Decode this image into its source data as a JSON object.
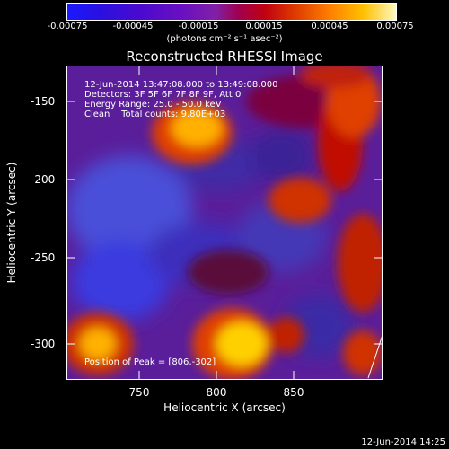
{
  "colorbar": {
    "labels": [
      "-0.00075",
      "-0.00045",
      "-0.00015",
      "0.00015",
      "0.00045",
      "0.00075"
    ],
    "units": "(photons cm⁻² s⁻¹ asec⁻²)",
    "range": [
      -0.00075,
      0.00075
    ]
  },
  "title": "Reconstructed RHESSI Image",
  "annotations": {
    "time": "12-Jun-2014 13:47:08.000 to 13:49:08.000",
    "detectors": "Detectors: 3F 5F 6F 7F 8F 9F, Att 0",
    "energy": "Energy Range: 25.0 - 50.0 keV",
    "clean": "Clean    Total counts: 9.80E+03",
    "peak": "Position of Peak = [806,-302]"
  },
  "axes": {
    "xlabel": "Heliocentric X (arcsec)",
    "ylabel": "Heliocentric Y (arcsec)",
    "xticks": [
      "750",
      "800",
      "850"
    ],
    "yticks": [
      "-150",
      "-200",
      "-250",
      "-300"
    ]
  },
  "timestamp": "12-Jun-2014 14:25"
}
